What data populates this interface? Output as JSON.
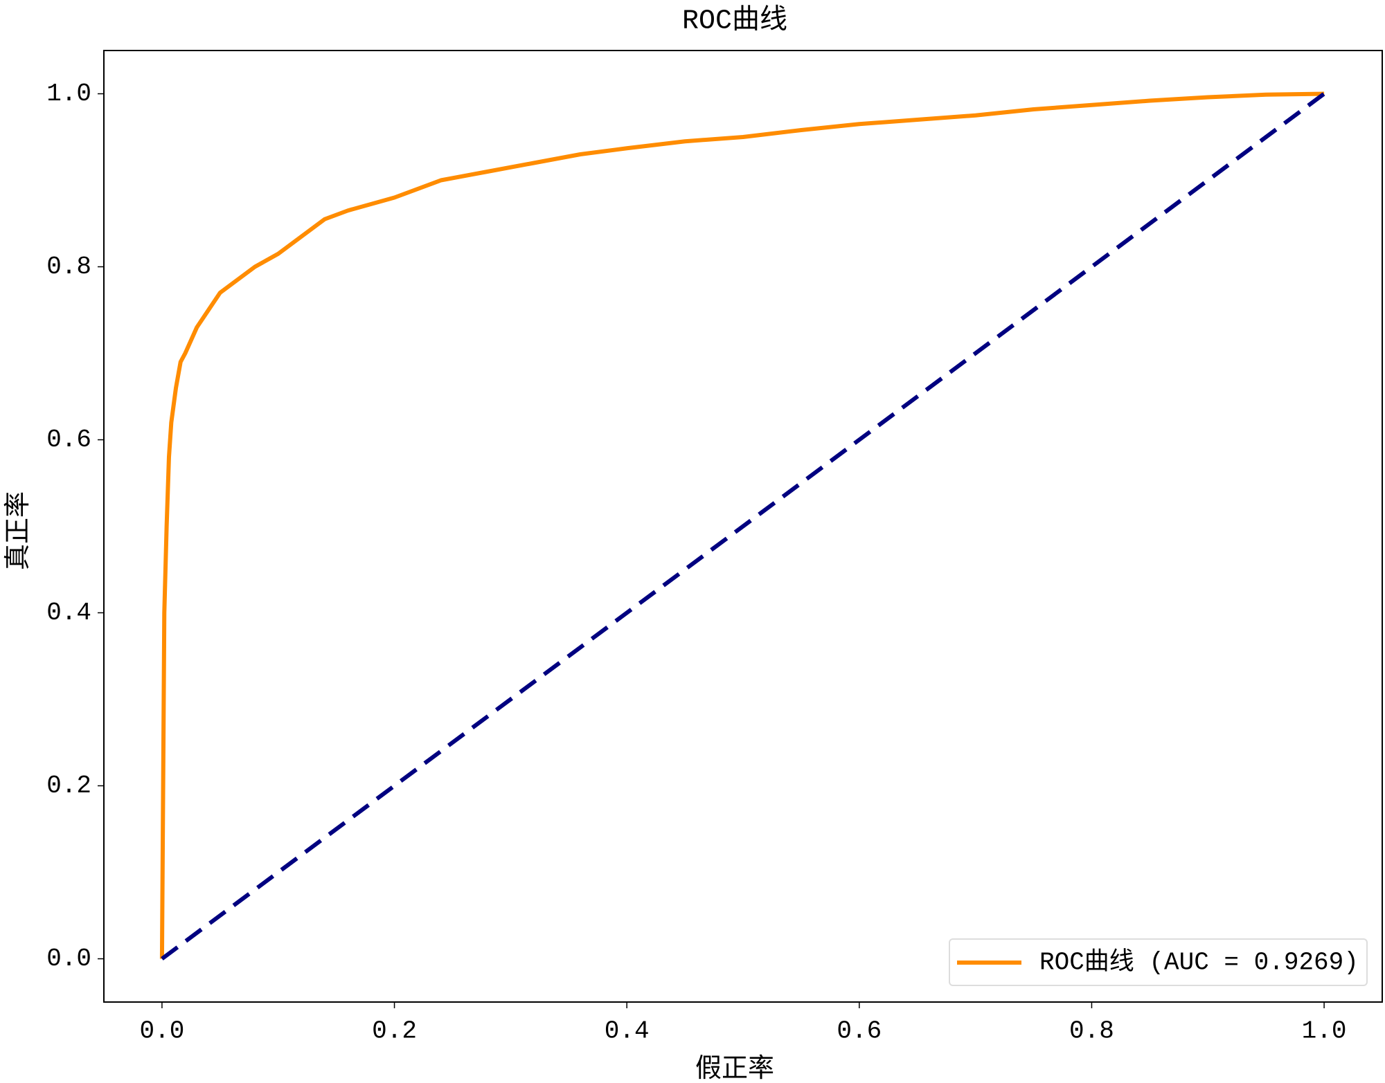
{
  "chart_data": {
    "type": "line",
    "title": "ROC曲线",
    "x_label": "假正率",
    "y_label": "真正率",
    "xlim": [
      -0.05,
      1.05
    ],
    "ylim": [
      -0.05,
      1.05
    ],
    "xticks": [
      {
        "value": 0,
        "label": "0.0"
      },
      {
        "value": 0.2,
        "label": "0.2"
      },
      {
        "value": 0.4,
        "label": "0.4"
      },
      {
        "value": 0.6,
        "label": "0.6"
      },
      {
        "value": 0.8,
        "label": "0.8"
      },
      {
        "value": 1,
        "label": "1.0"
      }
    ],
    "yticks": [
      {
        "value": 0,
        "label": "0.0"
      },
      {
        "value": 0.2,
        "label": "0.2"
      },
      {
        "value": 0.4,
        "label": "0.4"
      },
      {
        "value": 0.6,
        "label": "0.6"
      },
      {
        "value": 0.8,
        "label": "0.8"
      },
      {
        "value": 1,
        "label": "1.0"
      }
    ],
    "grid": false,
    "legend": "lower right",
    "series": [
      {
        "name": "ROC曲线 (AUC = 0.9269)",
        "color": "#ff8c00",
        "dash": false,
        "x": [
          0,
          0.001,
          0.002,
          0.004,
          0.006,
          0.008,
          0.012,
          0.016,
          0.02,
          0.03,
          0.04,
          0.05,
          0.06,
          0.08,
          0.1,
          0.12,
          0.14,
          0.16,
          0.2,
          0.24,
          0.28,
          0.32,
          0.36,
          0.4,
          0.45,
          0.5,
          0.55,
          0.6,
          0.65,
          0.7,
          0.75,
          0.8,
          0.85,
          0.9,
          0.95,
          1.0
        ],
        "values": [
          0,
          0.2,
          0.4,
          0.5,
          0.58,
          0.62,
          0.66,
          0.69,
          0.7,
          0.73,
          0.75,
          0.77,
          0.78,
          0.8,
          0.815,
          0.835,
          0.855,
          0.865,
          0.88,
          0.9,
          0.91,
          0.92,
          0.93,
          0.937,
          0.945,
          0.95,
          0.958,
          0.965,
          0.97,
          0.975,
          0.982,
          0.987,
          0.992,
          0.996,
          0.999,
          1.0
        ]
      },
      {
        "color": "#000080",
        "dash": true,
        "x": [
          0,
          1
        ],
        "values": [
          0,
          1
        ]
      }
    ]
  }
}
